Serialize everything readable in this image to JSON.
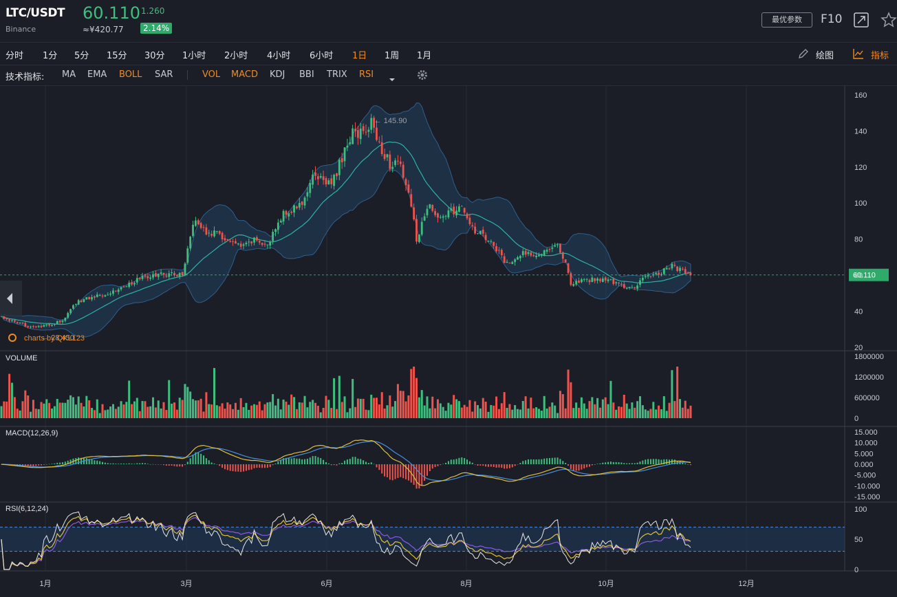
{
  "header": {
    "symbol": "LTC/USDT",
    "exchange": "Binance",
    "price": "60.110",
    "change": "1.260",
    "cny_value": "≈¥420.77",
    "change_pct": "2.14%",
    "param_button": "最优参数",
    "f10": "F10",
    "accent_up": "#3fbf7f",
    "accent_down": "#f0524c",
    "accent_active": "#f08a24"
  },
  "timeframes": [
    "分时",
    "1分",
    "5分",
    "15分",
    "30分",
    "1小时",
    "2小时",
    "4小时",
    "6小时",
    "1日",
    "1周",
    "1月"
  ],
  "active_timeframe": "1日",
  "tools": {
    "draw": "绘图",
    "indicators": "指标"
  },
  "indicator_bar": {
    "label": "技术指标:",
    "main": [
      "MA",
      "EMA",
      "BOLL",
      "SAR"
    ],
    "main_active": "BOLL",
    "sub": [
      "VOL",
      "MACD",
      "KDJ",
      "BBI",
      "TRIX",
      "RSI"
    ],
    "sub_active": [
      "VOL",
      "MACD",
      "RSI"
    ]
  },
  "panes": {
    "volume_title": "VOLUME",
    "macd_title": "MACD(12,26,9)",
    "rsi_title": "RSI(6,12,24)"
  },
  "watermark": "charts by QKL123",
  "chart_data": {
    "type": "candlestick",
    "title": "LTC/USDT",
    "x_tick_labels": [
      "1月",
      "3月",
      "6月",
      "8月",
      "10月",
      "12月"
    ],
    "price_axis": {
      "ticks": [
        "160",
        "140",
        "120",
        "100",
        "80",
        "60",
        "40",
        "20"
      ],
      "ylim": [
        18,
        165
      ]
    },
    "last_price_label": "60.110",
    "annotations": [
      {
        "text": "145.90",
        "type": "high"
      },
      {
        "text": "28.450",
        "type": "low"
      }
    ],
    "close_path": [
      {
        "i": 0,
        "v": 37
      },
      {
        "i": 6,
        "v": 33
      },
      {
        "i": 14,
        "v": 31
      },
      {
        "i": 20,
        "v": 33
      },
      {
        "i": 24,
        "v": 36
      },
      {
        "i": 28,
        "v": 45
      },
      {
        "i": 34,
        "v": 48
      },
      {
        "i": 42,
        "v": 51
      },
      {
        "i": 52,
        "v": 58
      },
      {
        "i": 62,
        "v": 61
      },
      {
        "i": 68,
        "v": 60
      },
      {
        "i": 72,
        "v": 90
      },
      {
        "i": 76,
        "v": 85
      },
      {
        "i": 82,
        "v": 82
      },
      {
        "i": 90,
        "v": 75
      },
      {
        "i": 96,
        "v": 80
      },
      {
        "i": 100,
        "v": 76
      },
      {
        "i": 106,
        "v": 95
      },
      {
        "i": 112,
        "v": 98
      },
      {
        "i": 118,
        "v": 116
      },
      {
        "i": 124,
        "v": 110
      },
      {
        "i": 128,
        "v": 125
      },
      {
        "i": 132,
        "v": 140
      },
      {
        "i": 136,
        "v": 138
      },
      {
        "i": 139,
        "v": 145
      },
      {
        "i": 142,
        "v": 133
      },
      {
        "i": 146,
        "v": 122
      },
      {
        "i": 150,
        "v": 120
      },
      {
        "i": 154,
        "v": 100
      },
      {
        "i": 156,
        "v": 78
      },
      {
        "i": 160,
        "v": 98
      },
      {
        "i": 166,
        "v": 92
      },
      {
        "i": 172,
        "v": 98
      },
      {
        "i": 178,
        "v": 85
      },
      {
        "i": 184,
        "v": 78
      },
      {
        "i": 190,
        "v": 66
      },
      {
        "i": 196,
        "v": 72
      },
      {
        "i": 202,
        "v": 72
      },
      {
        "i": 208,
        "v": 78
      },
      {
        "i": 212,
        "v": 68
      },
      {
        "i": 214,
        "v": 55
      },
      {
        "i": 220,
        "v": 57
      },
      {
        "i": 226,
        "v": 58
      },
      {
        "i": 232,
        "v": 55
      },
      {
        "i": 238,
        "v": 52
      },
      {
        "i": 242,
        "v": 60
      },
      {
        "i": 248,
        "v": 62
      },
      {
        "i": 252,
        "v": 65
      },
      {
        "i": 256,
        "v": 62
      },
      {
        "i": 259,
        "v": 60.11
      }
    ],
    "candle_count": 260,
    "volume_axis": {
      "ticks": [
        "1800000",
        "1200000",
        "600000",
        "0"
      ],
      "ylim": [
        0,
        1800000
      ]
    },
    "macd_axis": {
      "ticks": [
        "15.000",
        "10.000",
        "5.000",
        "0.000",
        "-5.000",
        "-10.000",
        "-15.000"
      ],
      "ylim": [
        -15,
        15
      ]
    },
    "rsi_axis": {
      "ticks": [
        "100",
        "50",
        "0"
      ],
      "ylim": [
        0,
        100
      ],
      "bands": [
        30,
        70
      ]
    },
    "series_colors": {
      "boll_mid": "#2fb2a4",
      "boll_band": "#25527a",
      "macd_dif": "#e0c03a",
      "macd_dea": "#4a8fe0",
      "rsi6": "#e8e8e8",
      "rsi12": "#e0c03a",
      "rsi24": "#8a5ce0"
    }
  }
}
